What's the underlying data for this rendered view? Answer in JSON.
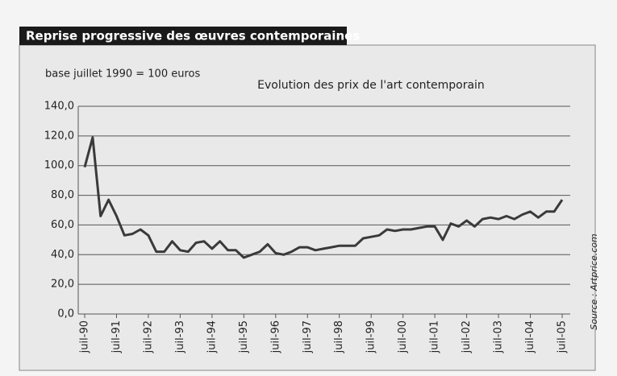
{
  "chart_data": {
    "type": "line",
    "banner": "Reprise progressive des œuvres contemporaines",
    "subtitle": "base juillet 1990 = 100 euros",
    "title": "Evolution des prix de l'art contemporain",
    "source": "Source : Artprice.com",
    "categories": [
      "juil-90",
      null,
      null,
      null,
      "juil-91",
      null,
      null,
      null,
      "juil-92",
      null,
      null,
      null,
      "juil-93",
      null,
      null,
      null,
      "juil-94",
      null,
      null,
      null,
      "juil-95",
      null,
      null,
      null,
      "juil-96",
      null,
      null,
      null,
      "juil-97",
      null,
      null,
      null,
      "juil-98",
      null,
      null,
      null,
      "juil-99",
      null,
      null,
      null,
      "juil-00",
      null,
      null,
      null,
      "juil-01",
      null,
      null,
      null,
      "juil-02",
      null,
      null,
      null,
      "juil-03",
      null,
      null,
      null,
      "juil-04",
      null,
      null,
      null,
      "juil-05"
    ],
    "values": [
      99,
      119,
      66,
      77,
      66,
      53,
      54,
      57,
      53,
      42,
      42,
      49,
      43,
      42,
      48,
      49,
      44,
      49,
      43,
      43,
      38,
      40,
      42,
      47,
      41,
      40,
      42,
      45,
      45,
      43,
      44,
      45,
      46,
      46,
      46,
      51,
      52,
      53,
      57,
      56,
      57,
      57,
      58,
      59,
      59,
      50,
      61,
      59,
      63,
      59,
      64,
      65,
      64,
      66,
      64,
      67,
      69,
      65,
      69,
      69,
      77
    ],
    "color": "#3a3a3a",
    "ylim": [
      0,
      140
    ],
    "yticks": [
      {
        "value": 0,
        "label": "0,0"
      },
      {
        "value": 20,
        "label": "20,0"
      },
      {
        "value": 40,
        "label": "40,0"
      },
      {
        "value": 60,
        "label": "60,0"
      },
      {
        "value": 80,
        "label": "80,0"
      },
      {
        "value": 100,
        "label": "100,0"
      },
      {
        "value": 120,
        "label": "120,0"
      },
      {
        "value": 140,
        "label": "140,0"
      }
    ],
    "grid": true
  }
}
